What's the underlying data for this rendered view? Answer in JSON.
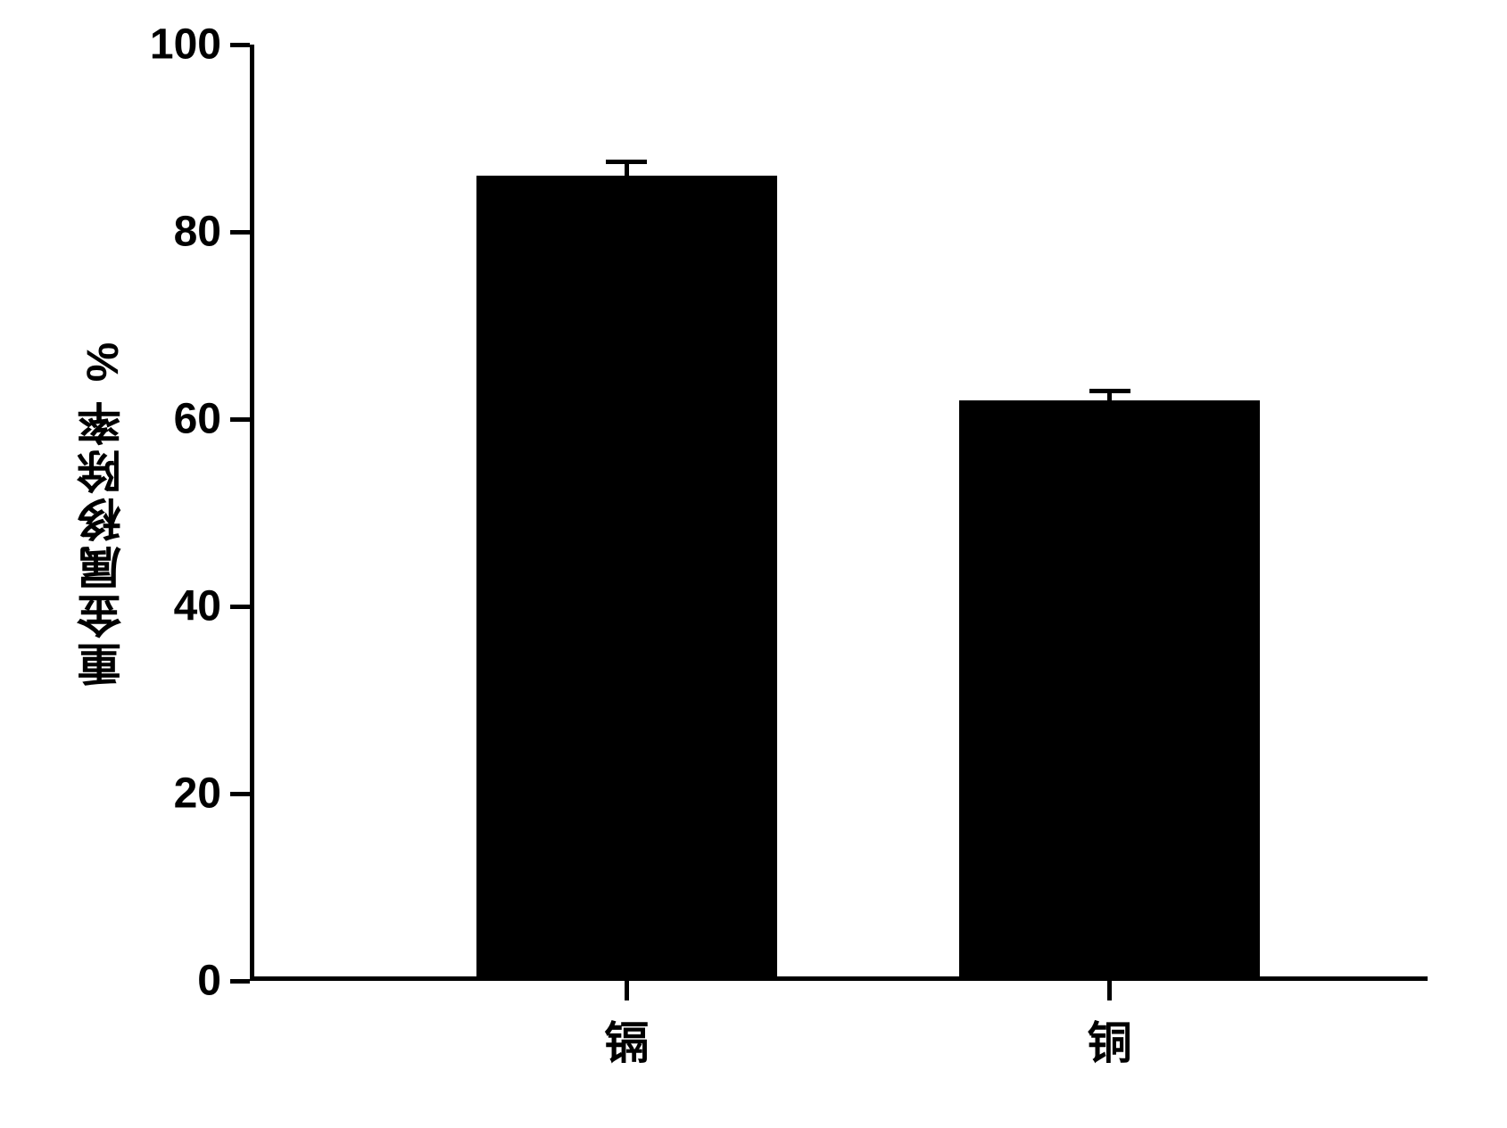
{
  "chart": {
    "type": "bar",
    "background_color": "#ffffff",
    "axis_color": "#000000",
    "axis_line_width": 5,
    "tick_length": 22,
    "y_axis": {
      "title": "重金属移除率 %",
      "title_fontsize": 50,
      "label_fontsize": 48,
      "ylim_min": 0,
      "ylim_max": 100,
      "ytick_step": 20,
      "ticks": [
        0,
        20,
        40,
        60,
        80,
        100
      ]
    },
    "x_axis": {
      "label_fontsize": 50,
      "categories": [
        "镉",
        "铜"
      ]
    },
    "bars": [
      {
        "category": "镉",
        "value": 85.5,
        "error_upper": 2.0,
        "color": "#000000",
        "center_frac": 0.32,
        "width_frac": 0.255
      },
      {
        "category": "铜",
        "value": 61.5,
        "error_upper": 1.5,
        "color": "#000000",
        "center_frac": 0.73,
        "width_frac": 0.255
      }
    ],
    "error_bar": {
      "color": "#000000",
      "stem_width": 5,
      "cap_width": 46
    }
  }
}
